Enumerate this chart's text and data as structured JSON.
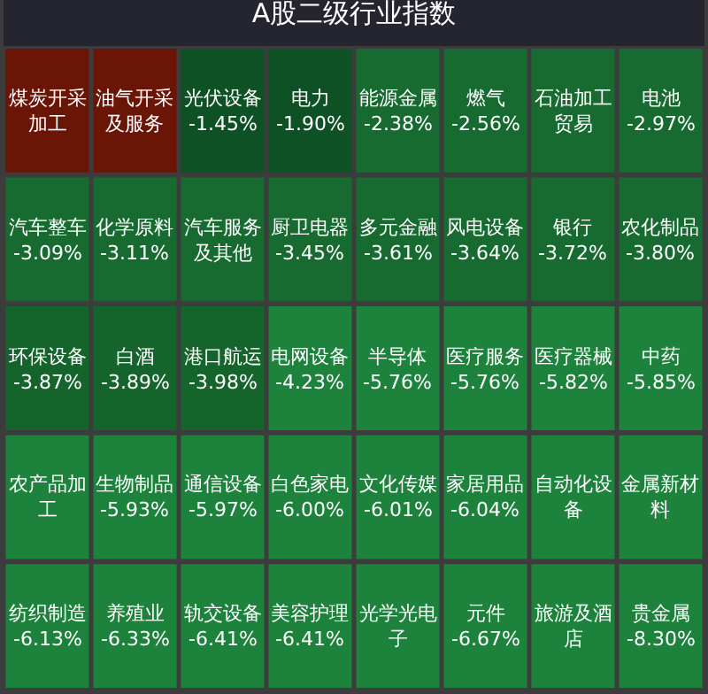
{
  "chart_data": {
    "type": "other",
    "title": "A股二级行业指数",
    "categories": [
      "煤炭开采加工",
      "油气开采及服务",
      "光伏设备",
      "电力",
      "能源金属",
      "燃气",
      "石油加工贸易",
      "电池",
      "汽车整车",
      "化学原料",
      "汽车服务及其他",
      "厨卫电器",
      "多元金融",
      "风电设备",
      "银行",
      "农化制品",
      "环保设备",
      "白酒",
      "港口航运",
      "电网设备",
      "半导体",
      "医疗服务",
      "医疗器械",
      "中药",
      "农产品加工",
      "生物制品",
      "通信设备",
      "白色家电",
      "文化传媒",
      "家居用品",
      "自动化设备",
      "金属新材料",
      "纺织制造",
      "养殖业",
      "轨交设备",
      "美容护理",
      "光学光电子",
      "元件",
      "旅游及酒店",
      "贵金属"
    ],
    "values": [
      null,
      null,
      -1.45,
      -1.9,
      -2.38,
      -2.56,
      null,
      -2.97,
      -3.09,
      -3.11,
      null,
      -3.45,
      -3.61,
      -3.64,
      -3.72,
      -3.8,
      -3.87,
      -3.89,
      -3.98,
      -4.23,
      -5.76,
      -5.76,
      -5.82,
      -5.85,
      null,
      -5.93,
      -5.97,
      -6.0,
      -6.01,
      -6.04,
      null,
      null,
      -6.13,
      -6.33,
      -6.41,
      -6.41,
      null,
      -6.67,
      null,
      -8.3
    ],
    "value_labels": [
      null,
      null,
      "-1.45%",
      "-1.90%",
      "-2.38%",
      "-2.56%",
      null,
      "-2.97%",
      "-3.09%",
      "-3.11%",
      null,
      "-3.45%",
      "-3.61%",
      "-3.64%",
      "-3.72%",
      "-3.80%",
      "-3.87%",
      "-3.89%",
      "-3.98%",
      "-4.23%",
      "-5.76%",
      "-5.76%",
      "-5.82%",
      "-5.85%",
      null,
      "-5.93%",
      "-5.97%",
      "-6.00%",
      "-6.01%",
      "-6.04%",
      null,
      null,
      "-6.13%",
      "-6.33%",
      "-6.41%",
      "-6.41%",
      null,
      "-6.67%",
      null,
      "-8.30%"
    ],
    "colors": [
      "#6b1507",
      "#6b1507",
      "#0e5124",
      "#0e5124",
      "#176b30",
      "#176b30",
      "#176b30",
      "#176b30",
      "#176b30",
      "#176b30",
      "#176b30",
      "#176b30",
      "#176b30",
      "#176b30",
      "#176b30",
      "#176b30",
      "#15642c",
      "#15642c",
      "#15642c",
      "#1c823c",
      "#1c823c",
      "#1c823c",
      "#1c823c",
      "#1c823c",
      "#1c823c",
      "#1c823c",
      "#1c823c",
      "#1c823c",
      "#1c823c",
      "#1c823c",
      "#1c823c",
      "#1c823c",
      "#1c823c",
      "#1c823c",
      "#1c823c",
      "#1c823c",
      "#1c823c",
      "#1c823c",
      "#1c823c",
      "#1c823c"
    ]
  }
}
